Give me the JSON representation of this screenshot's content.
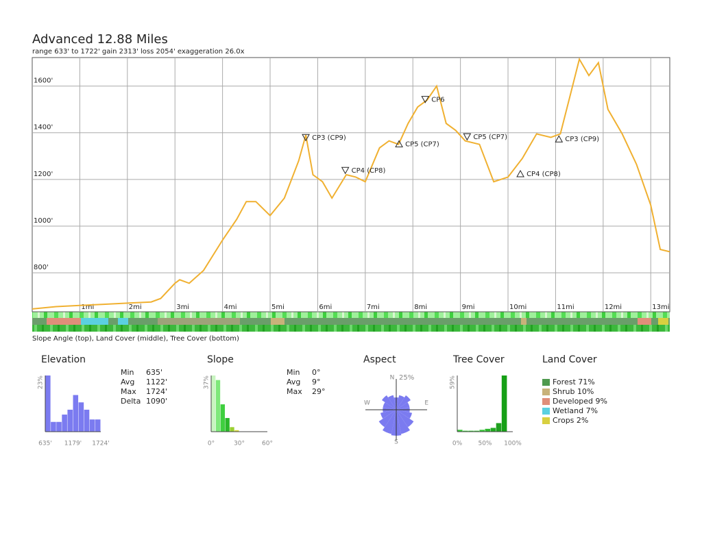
{
  "title": "Advanced 12.88 Miles",
  "subtitle": "range 633' to 1722'  gain 2313'  loss 2054'  exaggeration 26.0x",
  "caption": "Slope Angle (top), Land Cover (middle), Tree Cover (bottom)",
  "stats": {
    "elevation": [
      [
        "Min",
        "635'"
      ],
      [
        "Avg",
        "1122'"
      ],
      [
        "Max",
        "1724'"
      ],
      [
        "Delta",
        "1090'"
      ]
    ],
    "slope": [
      [
        "Min",
        "0°"
      ],
      [
        "Avg",
        "9°"
      ],
      [
        "Max",
        "29°"
      ]
    ]
  },
  "chart_data": [
    {
      "type": "line",
      "color": "#f0b030",
      "grid": true,
      "x": [
        0,
        0.5,
        1,
        1.5,
        2,
        2.5,
        2.7,
        3,
        3.1,
        3.3,
        3.6,
        4,
        4.3,
        4.5,
        4.7,
        5,
        5.3,
        5.6,
        5.75,
        5.9,
        6.1,
        6.3,
        6.6,
        6.8,
        7,
        7.3,
        7.5,
        7.7,
        7.9,
        8.1,
        8.3,
        8.5,
        8.7,
        8.9,
        9.1,
        9.4,
        9.7,
        10,
        10.3,
        10.6,
        10.9,
        11.1,
        11.3,
        11.5,
        11.7,
        11.9,
        12.1,
        12.4,
        12.7,
        13,
        13.2,
        13.4
      ],
      "values": [
        645,
        655,
        660,
        665,
        670,
        675,
        690,
        755,
        770,
        755,
        810,
        940,
        1030,
        1105,
        1105,
        1045,
        1120,
        1280,
        1390,
        1220,
        1190,
        1120,
        1220,
        1210,
        1190,
        1335,
        1365,
        1350,
        1440,
        1510,
        1540,
        1600,
        1440,
        1410,
        1365,
        1350,
        1190,
        1210,
        1290,
        1395,
        1380,
        1395,
        1555,
        1715,
        1645,
        1700,
        1500,
        1395,
        1265,
        1090,
        900,
        890
      ],
      "xlim": [
        0,
        13.4
      ],
      "ylim": [
        633,
        1722
      ],
      "xticks": [
        {
          "value": 1,
          "label": "1mi"
        },
        {
          "value": 2,
          "label": "2mi"
        },
        {
          "value": 3,
          "label": "3mi"
        },
        {
          "value": 4,
          "label": "4mi"
        },
        {
          "value": 5,
          "label": "5mi"
        },
        {
          "value": 6,
          "label": "6mi"
        },
        {
          "value": 7,
          "label": "7mi"
        },
        {
          "value": 8,
          "label": "8mi"
        },
        {
          "value": 9,
          "label": "9mi"
        },
        {
          "value": 10,
          "label": "10mi"
        },
        {
          "value": 11,
          "label": "11mi"
        },
        {
          "value": 12,
          "label": "12mi"
        },
        {
          "value": 13,
          "label": "13mi"
        }
      ],
      "yticks": [
        {
          "value": 800,
          "label": "800'"
        },
        {
          "value": 1000,
          "label": "1000'"
        },
        {
          "value": 1200,
          "label": "1200'"
        },
        {
          "value": 1400,
          "label": "1400'"
        },
        {
          "value": 1600,
          "label": "1600'"
        }
      ],
      "annotations": [
        {
          "text": "CP3 (CP9)",
          "x": 5.75,
          "y": 1378,
          "direction": "down"
        },
        {
          "text": "CP4 (CP8)",
          "x": 6.58,
          "y": 1237,
          "direction": "down"
        },
        {
          "text": "CP6",
          "x": 8.26,
          "y": 1541,
          "direction": "down"
        },
        {
          "text": "CP5 (CP7)",
          "x": 7.71,
          "y": 1351,
          "direction": "up"
        },
        {
          "text": "CP5 (CP7)",
          "x": 9.14,
          "y": 1381,
          "direction": "down"
        },
        {
          "text": "CP4 (CP8)",
          "x": 10.26,
          "y": 1223,
          "direction": "up"
        },
        {
          "text": "CP3 (CP9)",
          "x": 11.07,
          "y": 1372,
          "direction": "up"
        }
      ]
    },
    {
      "type": "histogram",
      "title": "Elevation",
      "color": "#7b7bf0",
      "bins": [
        635,
        744,
        853,
        962,
        1071,
        1180,
        1288,
        1397,
        1506,
        1615,
        1724
      ],
      "values": [
        23,
        4,
        4,
        7,
        9,
        15,
        12,
        9,
        5,
        5
      ],
      "xlim": [
        635,
        1724
      ],
      "ylim": [
        0,
        23
      ],
      "xticks": [
        {
          "value": 635,
          "label": "635'"
        },
        {
          "value": 1179,
          "label": "1179'"
        },
        {
          "value": 1724,
          "label": "1724'"
        }
      ],
      "yticks": [
        {
          "value": 23,
          "label": "23%"
        }
      ]
    },
    {
      "type": "histogram",
      "title": "Slope",
      "colors": [
        "#c8f5c0",
        "#7ee87a",
        "#3fcf3f",
        "#2ab82a",
        "#9ad030",
        "#d8d840"
      ],
      "bins": [
        0,
        5,
        10,
        15,
        20,
        25,
        30
      ],
      "values": [
        37,
        34,
        18,
        9,
        3,
        1
      ],
      "xlim": [
        0,
        60
      ],
      "ylim": [
        0,
        37
      ],
      "xticks": [
        {
          "value": 0,
          "label": "0°"
        },
        {
          "value": 30,
          "label": "30°"
        },
        {
          "value": 60,
          "label": "60°"
        }
      ],
      "yticks": [
        {
          "value": 37,
          "label": "37%"
        }
      ]
    },
    {
      "type": "polar",
      "title": "Aspect",
      "color": "#7b7bf0",
      "categories": [
        "N",
        null,
        null,
        null,
        "E",
        null,
        null,
        null,
        "S",
        null,
        null,
        null,
        "W",
        null,
        null,
        null
      ],
      "values": [
        10,
        12,
        14,
        11,
        11,
        13,
        17,
        20,
        21,
        20,
        17,
        13,
        11,
        11,
        14,
        12
      ],
      "rlim": [
        0,
        25
      ],
      "rticks": [
        {
          "value": 25,
          "label": "25%"
        }
      ]
    },
    {
      "type": "histogram",
      "title": "Tree Cover",
      "colors": [
        "#3cc83c",
        "#3cc83c",
        "#3cc83c",
        "#3cc83c",
        "#3cc83c",
        "#2eb82e",
        "#22aa22",
        "#1fa01f",
        "#16a016",
        "#16a016"
      ],
      "bins": [
        0,
        10,
        20,
        30,
        40,
        50,
        60,
        70,
        80,
        90,
        100
      ],
      "values": [
        2,
        1,
        1,
        1,
        2,
        3,
        4,
        9,
        59,
        0
      ],
      "xlim": [
        0,
        100
      ],
      "ylim": [
        0,
        59
      ],
      "xticks": [
        {
          "value": 0,
          "label": "0%"
        },
        {
          "value": 50,
          "label": "50%"
        },
        {
          "value": 100,
          "label": "100%"
        }
      ],
      "yticks": [
        {
          "value": 59,
          "label": "59%"
        }
      ]
    },
    {
      "type": "legend",
      "title": "Land Cover",
      "categories": [
        "Forest",
        "Shrub",
        "Developed",
        "Wetland",
        "Crops"
      ],
      "values": [
        71,
        10,
        9,
        7,
        2
      ],
      "value_labels": [
        "71%",
        "10%",
        "9%",
        "7%",
        "2%"
      ],
      "colors": [
        "#4f9a4f",
        "#c8b27a",
        "#e08e7a",
        "#5bd0e0",
        "#d8d040"
      ]
    }
  ]
}
